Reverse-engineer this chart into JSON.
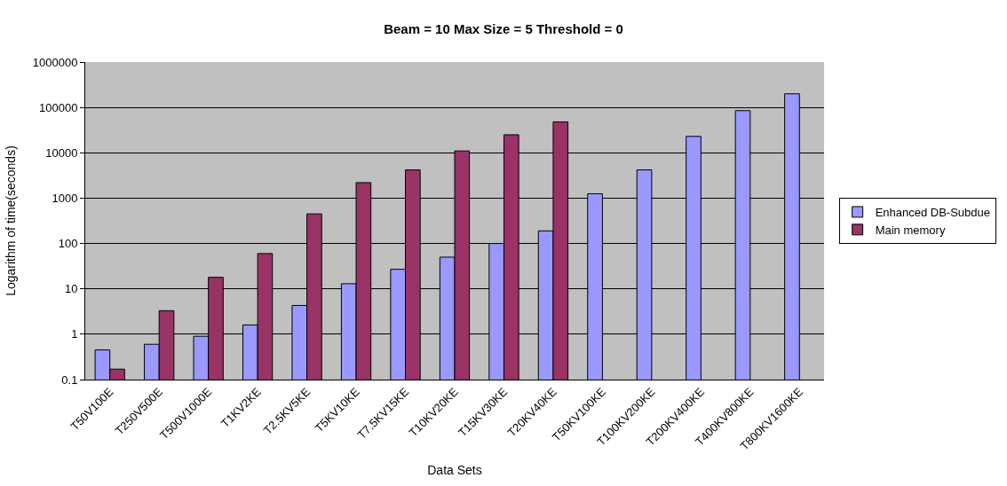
{
  "chart_data": {
    "type": "bar",
    "title": "Beam = 10 Max Size = 5 Threshold = 0",
    "xlabel": "Data Sets",
    "ylabel": "Logarithm of time(seconds)",
    "categories": [
      "T50V100E",
      "T250V500E",
      "T500V1000E",
      "T1KV2KE",
      "T2.5KV5KE",
      "T5KV10KE",
      "T7.5KV15KE",
      "T10KV20KE",
      "T15KV30KE",
      "T20KV40KE",
      "T50KV100KE",
      "T100KV200KE",
      "T200KV400KE",
      "T400KV800KE",
      "T800KV1600KE"
    ],
    "series": [
      {
        "name": "Enhanced DB-Subdue",
        "color": "#9999ff",
        "values": [
          0.45,
          0.6,
          0.9,
          1.6,
          4.3,
          13,
          27,
          50,
          100,
          190,
          1250,
          4200,
          23000,
          85000,
          200000
        ]
      },
      {
        "name": "Main memory",
        "color": "#993366",
        "values": [
          0.17,
          3.3,
          18,
          60,
          450,
          2200,
          4200,
          11000,
          25000,
          48000,
          null,
          null,
          null,
          null,
          null
        ]
      }
    ],
    "log": "y",
    "ylim": [
      0.1,
      1000000
    ],
    "yticks": [
      0.1,
      1,
      10,
      100,
      1000,
      10000,
      100000,
      1000000
    ],
    "grid": "y",
    "legend": "right"
  }
}
